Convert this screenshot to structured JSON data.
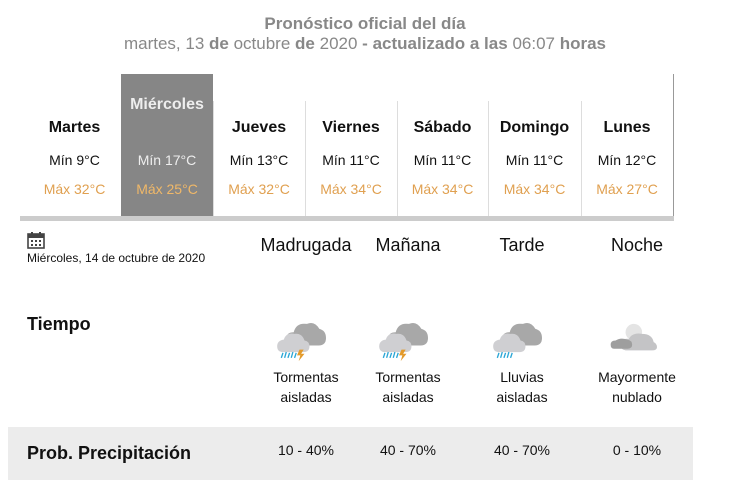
{
  "header": {
    "title": "Pronóstico oficial del día",
    "sub_day": "martes, 13",
    "sub_de1": "de",
    "sub_month": "octubre",
    "sub_de2": "de",
    "sub_year": "2020",
    "sub_dash": "-",
    "sub_updated": "actualizado a las",
    "sub_time": "06:07",
    "sub_hours": "horas"
  },
  "days": [
    {
      "name": "Martes",
      "min": "Mín 9°C",
      "max": "Máx 32°C"
    },
    {
      "name": "Miércoles",
      "min": "Mín 17°C",
      "max": "Máx 25°C",
      "selected": true
    },
    {
      "name": "Jueves",
      "min": "Mín 13°C",
      "max": "Máx 32°C"
    },
    {
      "name": "Viernes",
      "min": "Mín 11°C",
      "max": "Máx 34°C"
    },
    {
      "name": "Sábado",
      "min": "Mín 11°C",
      "max": "Máx 34°C"
    },
    {
      "name": "Domingo",
      "min": "Mín 11°C",
      "max": "Máx 34°C"
    },
    {
      "name": "Lunes",
      "min": "Mín 12°C",
      "max": "Máx 27°C"
    }
  ],
  "detail": {
    "date": "Miércoles, 14 de octubre de 2020",
    "periods": [
      "Madrugada",
      "Mañana",
      "Tarde",
      "Noche"
    ],
    "tiempo_label": "Tiempo",
    "weather": [
      {
        "icon": "storm-icon",
        "line1": "Tormentas",
        "line2": "aisladas"
      },
      {
        "icon": "storm-icon",
        "line1": "Tormentas",
        "line2": "aisladas"
      },
      {
        "icon": "rain-icon",
        "line1": "Lluvias",
        "line2": "aisladas"
      },
      {
        "icon": "mostly-cloudy-night-icon",
        "line1": "Mayormente",
        "line2": "nublado"
      }
    ],
    "precip_label": "Prob. Precipitación",
    "precip": [
      "10 - 40%",
      "40 - 70%",
      "40 - 70%",
      "0 - 10%"
    ]
  },
  "colors": {
    "max_temp": "#e0a050",
    "selected_bg": "#868686",
    "header": "#888888"
  }
}
